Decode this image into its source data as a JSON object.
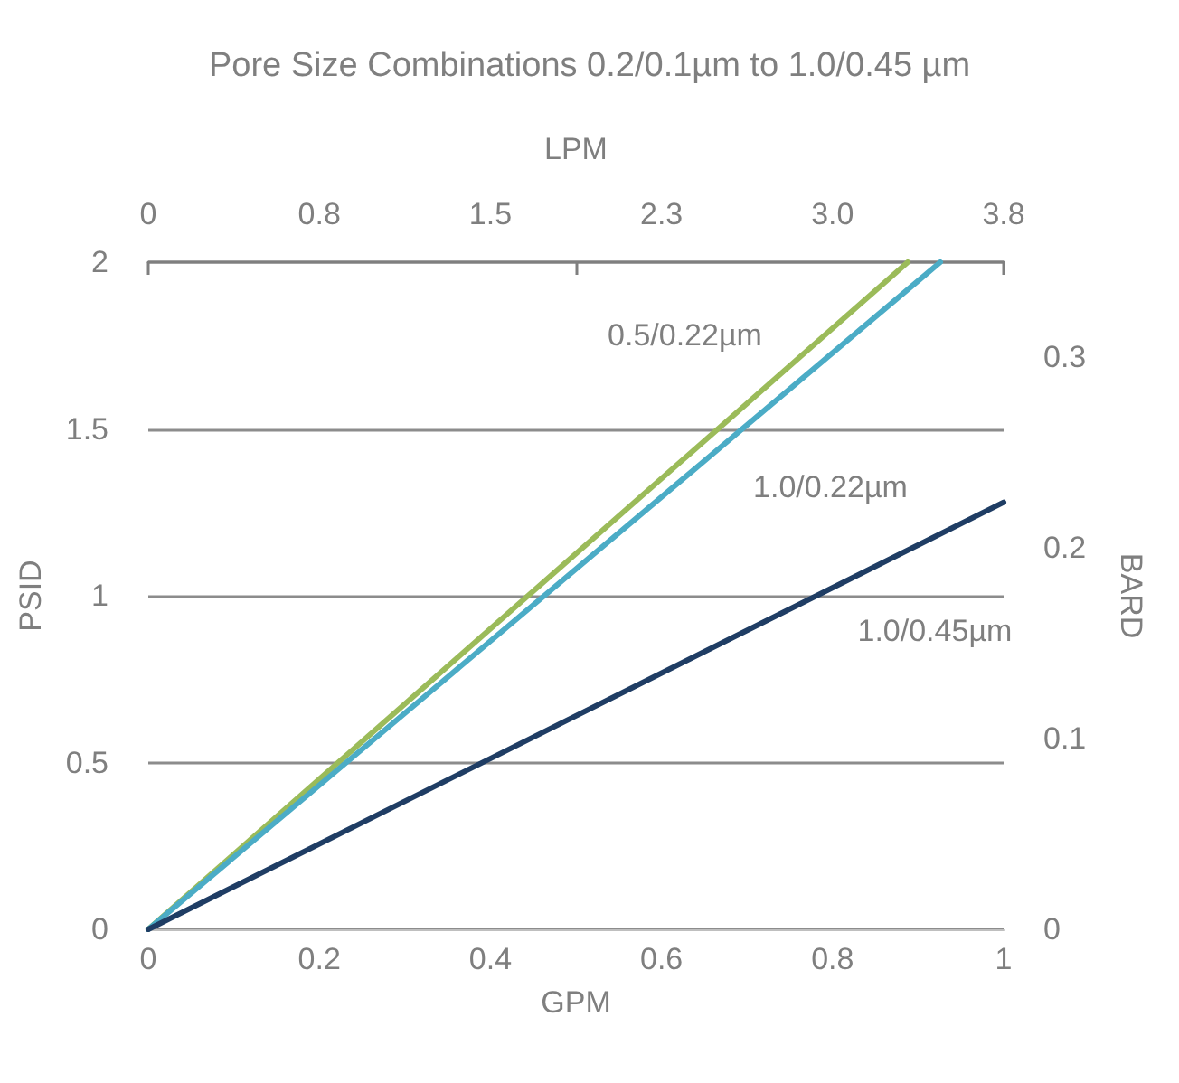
{
  "chart_data": {
    "type": "line",
    "title": "Pore Size Combinations 0.2/0.1µm to 1.0/0.45 µm",
    "xlabel": "GPM",
    "ylabel": "PSID",
    "y2label": "BARD",
    "x2label": "LPM",
    "xlim": [
      0,
      1
    ],
    "xticks": [
      0,
      0.2,
      0.4,
      0.6,
      0.8,
      1
    ],
    "ylim": [
      0,
      2
    ],
    "yticks": [
      0,
      0.5,
      1,
      1.5,
      2
    ],
    "y2lim": [
      0,
      0.35
    ],
    "y2ticks": [
      0,
      0.1,
      0.2,
      0.3
    ],
    "x2lim": [
      0,
      3.8
    ],
    "x2ticks": [
      {
        "value": 0,
        "label": "0"
      },
      {
        "value": 0.76,
        "label": "0.8"
      },
      {
        "value": 1.52,
        "label": "1.5"
      },
      {
        "value": 1.9,
        "label": null
      },
      {
        "value": 2.28,
        "label": "2.3"
      },
      {
        "value": 3.04,
        "label": "3.0"
      },
      {
        "value": 3.8,
        "label": "3.8"
      }
    ],
    "grid": "y",
    "legend": false,
    "marker": "none",
    "line_style": "solid",
    "series": [
      {
        "name": "0.5/0.22µm",
        "color": "#9bbb59",
        "x": [
          0,
          0.888
        ],
        "values": [
          0,
          2
        ]
      },
      {
        "name": "1.0/0.22µm",
        "color": "#4bacc6",
        "x": [
          0,
          0.926
        ],
        "values": [
          0,
          2
        ]
      },
      {
        "name": "1.0/0.45µm",
        "color": "#1f3d64",
        "x": [
          0,
          1
        ],
        "values": [
          0,
          1.28
        ]
      }
    ]
  }
}
